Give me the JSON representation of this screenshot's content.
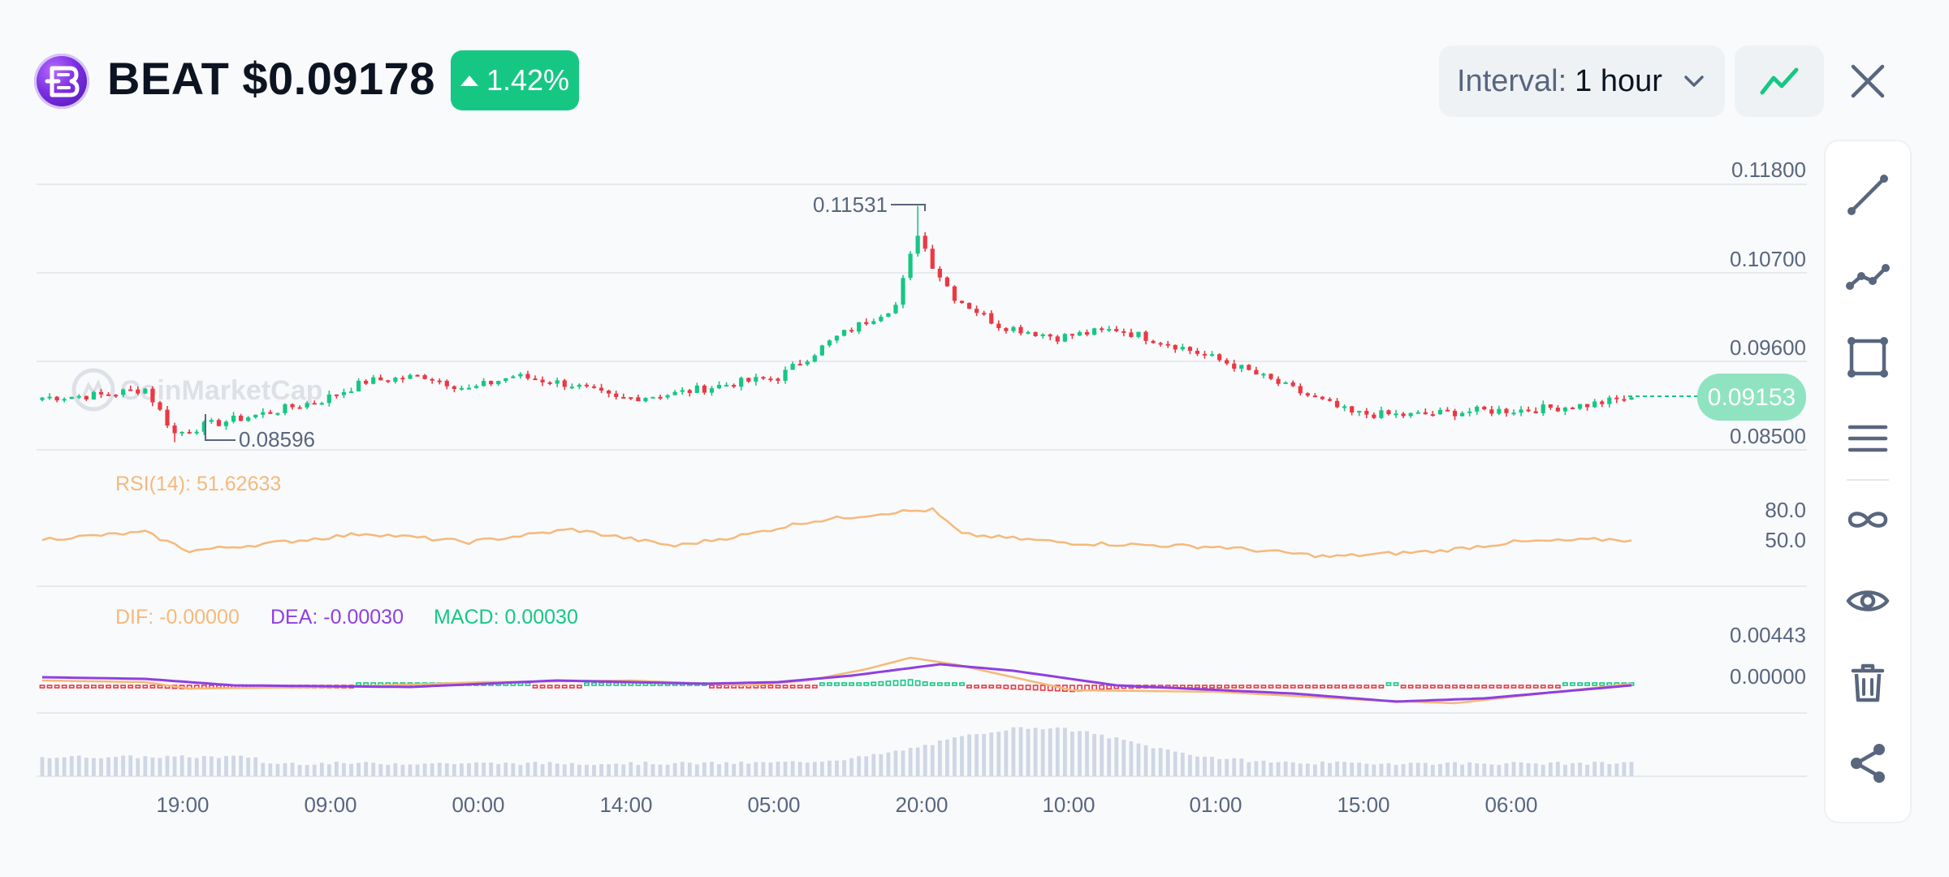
{
  "header": {
    "coin_title": "BEAT $0.09178",
    "change_pct": "1.42%",
    "interval_label": "Interval:",
    "interval_value": "1 hour"
  },
  "colors": {
    "up": "#16c784",
    "down": "#ea3943",
    "rsi": "#f5b97a",
    "dif": "#f5b97a",
    "dea": "#8f3fe0",
    "volume": "#cfd6e4",
    "grid": "#e6e9ee",
    "price_tag": "#8fe3c1"
  },
  "icons": {
    "coin_logo": "beat-coin-icon",
    "chart_type": "line-chart-icon",
    "close": "close-icon",
    "tools": [
      "trend-line-icon",
      "polyline-icon",
      "rectangle-icon",
      "parallel-lines-icon",
      "infinite-line-icon",
      "eye-icon",
      "trash-icon",
      "share-icon"
    ]
  },
  "watermark": "CoinMarketCap",
  "chart_data": {
    "type": "candlestick",
    "price_axis_ticks": [
      "0.11800",
      "0.10700",
      "0.09600",
      "0.08500"
    ],
    "price_ylim": [
      0.085,
      0.118
    ],
    "current_price_label": "0.09153",
    "current_price": 0.09153,
    "high_label": "0.11531",
    "high_value": 0.11531,
    "low_label": "0.08596",
    "low_value": 0.08596,
    "rsi_label": "RSI(14): 51.62633",
    "rsi_ticks": [
      "80.0",
      "50.0"
    ],
    "macd_labels": {
      "dif": "DIF: -0.00000",
      "dea": "DEA: -0.00030",
      "macd": "MACD: 0.00030"
    },
    "macd_ticks": [
      "0.00443",
      "0.00000"
    ],
    "time_labels": [
      "19:00",
      "09:00",
      "00:00",
      "14:00",
      "05:00",
      "20:00",
      "10:00",
      "01:00",
      "15:00",
      "06:00"
    ],
    "close_keypoints": [
      [
        0,
        0.0915
      ],
      [
        8,
        0.0918
      ],
      [
        14,
        0.0926
      ],
      [
        18,
        0.087
      ],
      [
        22,
        0.088
      ],
      [
        30,
        0.0895
      ],
      [
        38,
        0.0912
      ],
      [
        44,
        0.0935
      ],
      [
        52,
        0.0942
      ],
      [
        58,
        0.0925
      ],
      [
        64,
        0.0942
      ],
      [
        72,
        0.0931
      ],
      [
        78,
        0.0913
      ],
      [
        86,
        0.092
      ],
      [
        94,
        0.0933
      ],
      [
        100,
        0.094
      ],
      [
        108,
        0.099
      ],
      [
        116,
        0.103
      ],
      [
        119,
        0.112
      ],
      [
        121,
        0.108
      ],
      [
        124,
        0.104
      ],
      [
        130,
        0.1005
      ],
      [
        138,
        0.099
      ],
      [
        146,
        0.1
      ],
      [
        154,
        0.098
      ],
      [
        162,
        0.0955
      ],
      [
        170,
        0.0925
      ],
      [
        178,
        0.0895
      ],
      [
        186,
        0.0893
      ],
      [
        194,
        0.0898
      ],
      [
        202,
        0.09
      ],
      [
        210,
        0.0906
      ],
      [
        216,
        0.0915
      ]
    ],
    "rsi_keypoints": [
      [
        0,
        50
      ],
      [
        14,
        57
      ],
      [
        20,
        38
      ],
      [
        30,
        45
      ],
      [
        44,
        56
      ],
      [
        58,
        47
      ],
      [
        72,
        60
      ],
      [
        86,
        43
      ],
      [
        96,
        55
      ],
      [
        104,
        68
      ],
      [
        116,
        78
      ],
      [
        121,
        80
      ],
      [
        125,
        55
      ],
      [
        140,
        46
      ],
      [
        160,
        42
      ],
      [
        175,
        32
      ],
      [
        190,
        38
      ],
      [
        200,
        47
      ],
      [
        214,
        50
      ],
      [
        216,
        48
      ]
    ]
  }
}
